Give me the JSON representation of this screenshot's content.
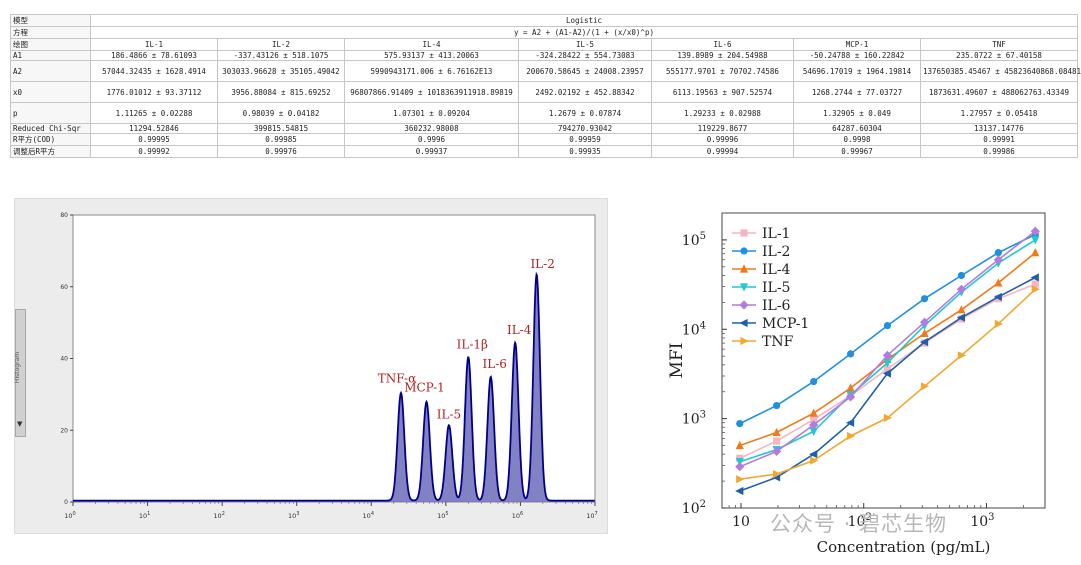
{
  "table": {
    "title_row": {
      "label": "模型",
      "value": "Logistic"
    },
    "equation_row": {
      "label": "方程",
      "value": "y = A2 + (A1-A2)/(1 + (x/x0)^p)"
    },
    "header_row": {
      "label": "绘图",
      "columns": [
        "IL-1",
        "IL-2",
        "IL-4",
        "IL-5",
        "IL-6",
        "MCP-1",
        "TNF"
      ]
    },
    "rows": [
      {
        "label": "A1",
        "values": [
          "186.4866 ± 78.61093",
          "-337.43126 ± 518.1075",
          "575.93137 ± 413.20063",
          "-324.28422 ± 554.73083",
          "139.8989 ± 204.54988",
          "-50.24788 ± 160.22842",
          "235.0722 ± 67.40158"
        ]
      },
      {
        "label": "A2",
        "values": [
          "57044.32435 ± 1628.4914",
          "303033.96628 ± 35105.49042",
          "5990943171.006 ± 6.76162E13",
          "200670.58645 ± 24008.23957",
          "555177.9701 ± 70702.74586",
          "54696.17019 ± 1964.19814",
          "137650385.45467 ± 45823640868.08481"
        ]
      },
      {
        "label": "x0",
        "values": [
          "1776.01012 ± 93.37112",
          "3956.88084 ± 815.69252",
          "96807866.91409 ± 1018363911918.89819",
          "2492.02192 ± 452.88342",
          "6113.19563 ± 907.52574",
          "1268.2744 ± 77.03727",
          "1873631.49607 ± 488062763.43349"
        ]
      },
      {
        "label": "p",
        "values": [
          "1.11265 ± 0.02288",
          "0.98039 ± 0.04182",
          "1.07301 ± 0.09204",
          "1.2679 ± 0.07874",
          "1.29233 ± 0.02988",
          "1.32905 ± 0.049",
          "1.27957 ± 0.05418"
        ]
      },
      {
        "label": "Reduced Chi-Sqr",
        "values": [
          "11294.52846",
          "399815.54815",
          "360232.98008",
          "794270.93042",
          "119229.8677",
          "64287.60304",
          "13137.14776"
        ]
      },
      {
        "label": "R平方(COD)",
        "values": [
          "0.99995",
          "0.99985",
          "0.9996",
          "0.99959",
          "0.99996",
          "0.9998",
          "0.99991"
        ]
      },
      {
        "label": "调整后R平方",
        "values": [
          "0.99992",
          "0.99976",
          "0.99937",
          "0.99935",
          "0.99994",
          "0.99967",
          "0.99986"
        ]
      }
    ]
  },
  "histogram": {
    "sidebar_label": "Histogram",
    "sidebar_arrow": "▼",
    "line_color": "#00008b",
    "fill_color": "#6b6bb8",
    "label_color": "#b22222"
  },
  "line_chart": {
    "ylabel": "MFI",
    "xlabel": "Concentration (pg/mL)",
    "colors": {
      "IL-1": "#f4b6c2",
      "IL-2": "#1e90e0",
      "IL-4": "#f07a18",
      "IL-5": "#20c8d0",
      "IL-6": "#b07ce0",
      "MCP-1": "#1f5fa8",
      "TNF": "#f0a830"
    }
  },
  "watermark": "公众号 · 碧芯生物",
  "chart_data": [
    {
      "type": "area",
      "title": "",
      "xscale": "log",
      "xlim": [
        1,
        10000000
      ],
      "ylim": [
        0,
        80
      ],
      "x_tick_labels": [
        "10",
        "10",
        "10",
        "10",
        "10",
        "10",
        "10",
        "10"
      ],
      "x_tick_exponents": [
        "0",
        "1",
        "2",
        "3",
        "4",
        "5",
        "6",
        "7"
      ],
      "y_ticks": [
        0,
        20,
        40,
        60,
        80
      ],
      "y_tick_labels": [
        "0",
        "20",
        "40",
        "60",
        "80"
      ],
      "peaks": [
        {
          "label": "TNF-α",
          "center": 25000,
          "height": 30
        },
        {
          "label": "MCP-1",
          "center": 55000,
          "height": 27.5
        },
        {
          "label": "IL-5",
          "center": 110000,
          "height": 21
        },
        {
          "label": "IL-1β",
          "center": 200000,
          "height": 40
        },
        {
          "label": "IL-6",
          "center": 400000,
          "height": 34.5
        },
        {
          "label": "IL-4",
          "center": 850000,
          "height": 44
        },
        {
          "label": "IL-2",
          "center": 1650000,
          "height": 63
        }
      ]
    },
    {
      "type": "line",
      "xscale": "log",
      "yscale": "log",
      "xlabel": "Concentration (pg/mL)",
      "ylabel": "MFI",
      "xlim": [
        7,
        3000
      ],
      "ylim": [
        100,
        200000
      ],
      "x_ticks": [
        10,
        100,
        1000
      ],
      "x_tick_labels": [
        "10",
        "10",
        "10"
      ],
      "x_tick_exponents": [
        "",
        "2",
        "3"
      ],
      "x_tick_bases": [
        "10",
        "10",
        "10"
      ],
      "y_ticks": [
        100,
        1000,
        10000,
        100000
      ],
      "y_tick_bases": [
        "10",
        "10",
        "10",
        "10"
      ],
      "y_tick_exponents": [
        "2",
        "3",
        "4",
        "5"
      ],
      "x": [
        9.77,
        19.5,
        39.1,
        78.1,
        156,
        313,
        625,
        1250,
        2500
      ],
      "series": [
        {
          "name": "IL-1",
          "marker": "square",
          "values": [
            360,
            560,
            980,
            1800,
            3600,
            7000,
            13000,
            22000,
            32000
          ]
        },
        {
          "name": "IL-2",
          "marker": "circle",
          "values": [
            880,
            1400,
            2600,
            5300,
            11000,
            22000,
            40000,
            72000,
            115000
          ]
        },
        {
          "name": "IL-4",
          "marker": "triangle-up",
          "values": [
            500,
            700,
            1150,
            2200,
            4600,
            9000,
            16500,
            33000,
            72000
          ]
        },
        {
          "name": "IL-5",
          "marker": "triangle-down",
          "values": [
            330,
            450,
            720,
            1850,
            4200,
            11000,
            26000,
            55000,
            100000
          ]
        },
        {
          "name": "IL-6",
          "marker": "diamond",
          "values": [
            290,
            430,
            850,
            1750,
            5100,
            12000,
            28000,
            60000,
            125000
          ]
        },
        {
          "name": "MCP-1",
          "marker": "triangle-left",
          "values": [
            155,
            220,
            400,
            900,
            3200,
            7200,
            13500,
            23000,
            38000
          ]
        },
        {
          "name": "TNF",
          "marker": "triangle-right",
          "values": [
            210,
            240,
            340,
            640,
            1020,
            2300,
            5100,
            11500,
            28000
          ]
        }
      ]
    }
  ]
}
